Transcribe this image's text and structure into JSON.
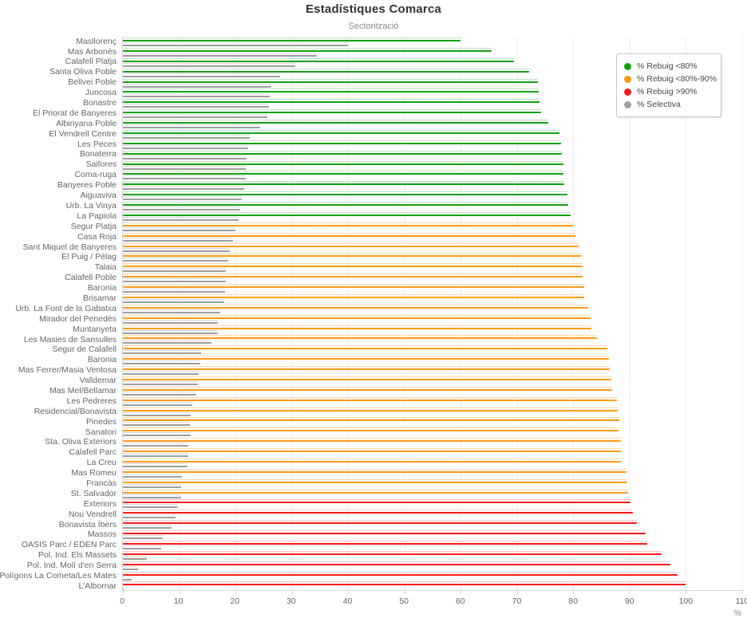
{
  "chart": {
    "title": "Estadístiques Comarca",
    "subtitle": "Sectorització",
    "x_unit": "%"
  },
  "legend": {
    "items": [
      {
        "label": "% Rebuig <80%",
        "color": "#12a112",
        "color_light": "#bfe3bf"
      },
      {
        "label": "% Rebuig <80%-90%",
        "color": "#ff9c17",
        "color_light": "#ffd9a6"
      },
      {
        "label": "% Rebuig >90%",
        "color": "#fa1919",
        "color_light": "#ffc2c2"
      },
      {
        "label": "% Selectiva",
        "color": "#9e9e9e",
        "color_light": "#d6d6d6"
      }
    ]
  },
  "chart_data": {
    "type": "bar",
    "orientation": "horizontal",
    "title": "Estadístiques Comarca",
    "subtitle": "Sectorització",
    "xlabel": "%",
    "xlim": [
      0,
      110
    ],
    "x_ticks": [
      0,
      10,
      20,
      30,
      40,
      50,
      60,
      70,
      80,
      90,
      100,
      110
    ],
    "grid": "vertical",
    "legend_position": "top-right",
    "color_rule": "rebuig <80 green, 80-90 orange, >90 red; selectiva gray",
    "categories": [
      "Masllorenç",
      "Mas Arbonès",
      "Calafell Platja",
      "Santa Oliva Poble",
      "Bellvei Poble",
      "Juncosa",
      "Bonastre",
      "El Priorat de Banyeres",
      "Albinyana Poble",
      "El Vendrell Centre",
      "Les Peces",
      "Bonaterra",
      "Saifores",
      "Coma-ruga",
      "Banyeres Poble",
      "Aiguaviva",
      "Urb. La Vinya",
      "La Papiola",
      "Segur Platja",
      "Casa Roja",
      "Sant Miquel de Banyeres",
      "El Puig / Pèlag",
      "Talaia",
      "Calafell Poble",
      "Baronia",
      "Brisamar",
      "Urb. La Font de la Gabatxa",
      "Mirador del Penedès",
      "Muntanyeta",
      "Les Masies de Sansulles",
      "Segur de Calafell",
      "Baronia",
      "Mas Ferrer/Masia Ventosa",
      "Valldemar",
      "Mas Mel/Bellamar",
      "Les Pedreres",
      "Residencial/Bonavista",
      "Pinedes",
      "Sanatori",
      "Sta. Oliva Exteriors",
      "Calafell Parc",
      "La Creu",
      "Mas Romeu",
      "Francàs",
      "St. Salvador",
      "Exteriors",
      "Nou Vendrell",
      "Bonavista Íbers",
      "Massos",
      "OASIS Parc / EDEN Parc",
      "Pol. Ind. Els Massets",
      "Pol. Ind. Molí d'en Serra",
      "Polígons La Cometa/Les Mates",
      "L'Albornar"
    ],
    "series": [
      {
        "name": "% Rebuig",
        "values": [
          60.0,
          65.5,
          69.4,
          72.1,
          73.7,
          73.9,
          74.0,
          74.3,
          75.6,
          77.5,
          77.8,
          78.0,
          78.2,
          78.2,
          78.4,
          78.9,
          79.1,
          79.5,
          80.0,
          80.4,
          81.0,
          81.3,
          81.7,
          81.7,
          81.9,
          82.0,
          82.7,
          83.1,
          83.2,
          84.2,
          86.1,
          86.3,
          86.5,
          86.7,
          86.9,
          87.7,
          87.9,
          88.1,
          88.0,
          88.4,
          88.4,
          88.5,
          89.5,
          89.6,
          89.7,
          90.2,
          90.6,
          91.3,
          92.9,
          93.2,
          95.7,
          97.3,
          98.5,
          99.9
        ]
      },
      {
        "name": "% Selectiva",
        "values": [
          40.0,
          34.5,
          30.6,
          27.9,
          26.3,
          26.1,
          26.0,
          25.7,
          24.4,
          22.5,
          22.2,
          22.0,
          21.8,
          21.8,
          21.6,
          21.1,
          20.9,
          20.5,
          20.0,
          19.6,
          19.0,
          18.7,
          18.3,
          18.3,
          18.1,
          18.0,
          17.3,
          16.9,
          16.8,
          15.8,
          13.9,
          13.7,
          13.5,
          13.3,
          13.1,
          12.3,
          12.1,
          11.9,
          12.0,
          11.6,
          11.6,
          11.5,
          10.5,
          10.4,
          10.3,
          9.8,
          9.4,
          8.7,
          7.1,
          6.8,
          4.3,
          2.7,
          1.5,
          0.1
        ]
      }
    ]
  }
}
